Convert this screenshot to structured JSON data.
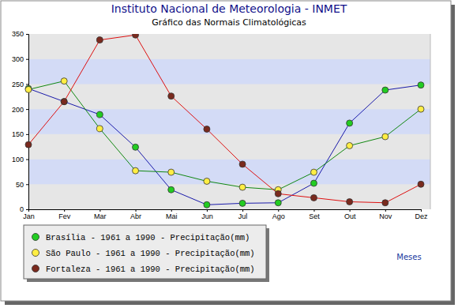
{
  "chart_data": {
    "type": "line",
    "title": "Instituto Nacional de Meteorologia - INMET",
    "subtitle": "Gráfico das Normais Climatológicas",
    "x_label": "Meses",
    "categories": [
      "Jan",
      "Fev",
      "Mar",
      "Abr",
      "Mai",
      "Jun",
      "Jul",
      "Ago",
      "Set",
      "Out",
      "Nov",
      "Dez"
    ],
    "series": [
      {
        "name": "Brasília - 1961 a 1990 - Precipitação(mm)",
        "color": "#22cc22",
        "marker": "circle",
        "values": [
          241,
          215,
          189,
          124,
          39,
          9,
          12,
          13,
          52,
          172,
          238,
          248
        ]
      },
      {
        "name": "São Paulo - 1961 a 1990 - Precipitação(mm)",
        "color": "#ffee44",
        "marker": "circle",
        "values": [
          239,
          256,
          161,
          77,
          74,
          56,
          44,
          39,
          74,
          127,
          145,
          200
        ]
      },
      {
        "name": "Fortaleza - 1961 a 1990 - Precipitação(mm)",
        "color": "#7a2a1e",
        "marker": "circle",
        "values": [
          129,
          215,
          338,
          348,
          226,
          160,
          90,
          31,
          23,
          15,
          13,
          50
        ]
      }
    ],
    "ylim": [
      0,
      350
    ],
    "yticks": [
      0,
      50,
      100,
      150,
      200,
      250,
      300,
      350
    ],
    "grid": true,
    "legend": "bottom-left"
  }
}
